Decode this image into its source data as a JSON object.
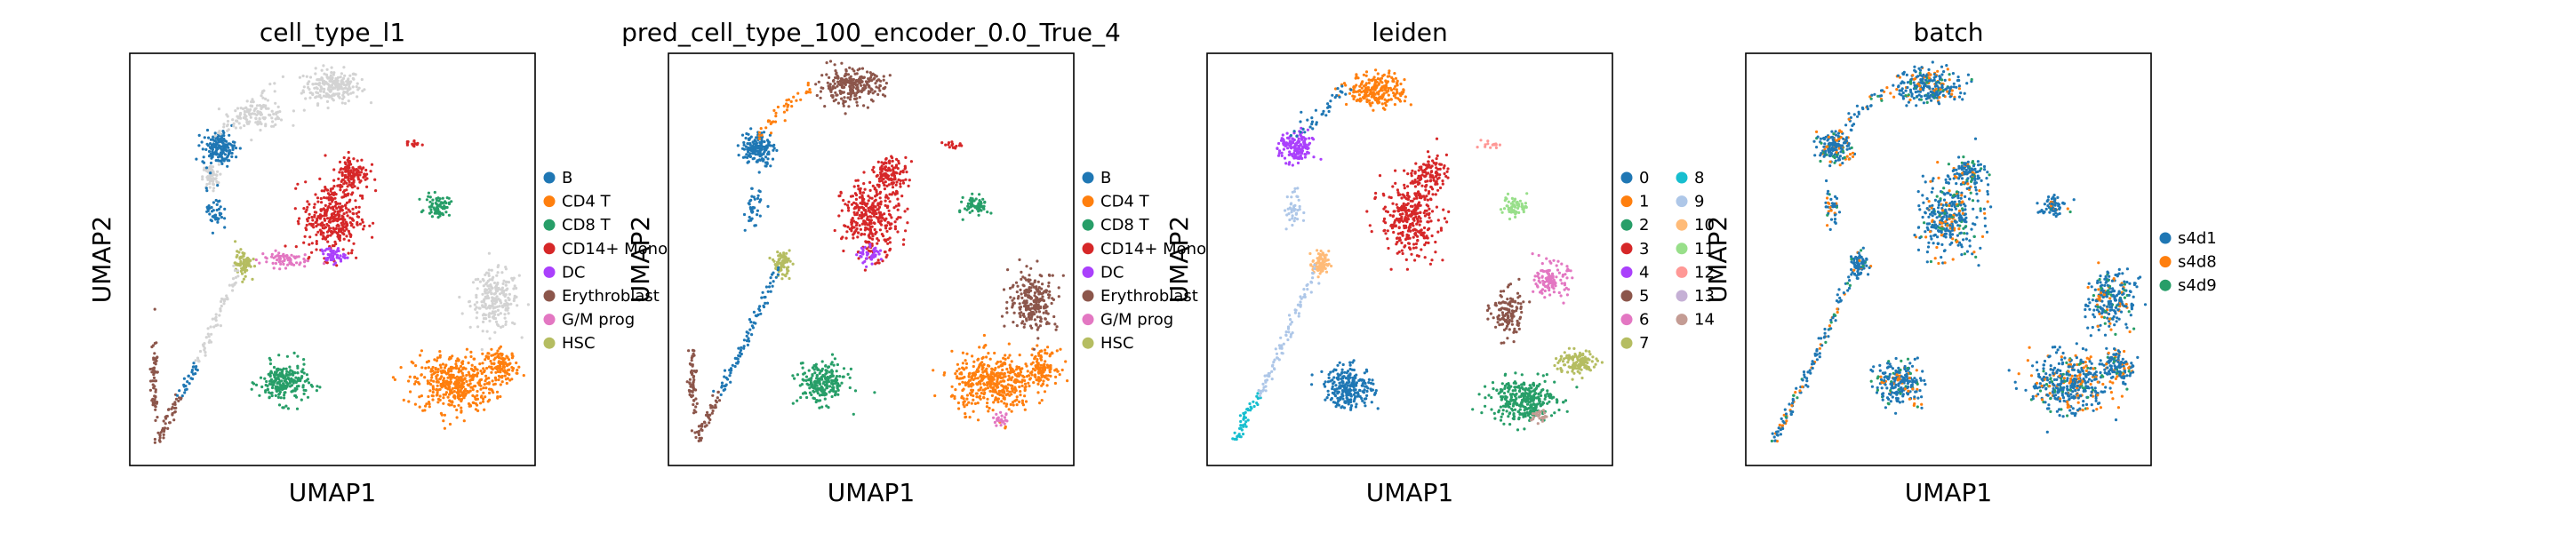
{
  "chart_data": [
    {
      "type": "scatter",
      "title": "cell_type_l1",
      "xlabel": "UMAP1",
      "ylabel": "UMAP2",
      "grid": false,
      "legend_placement": "right",
      "legend": [
        {
          "label": "B",
          "color": "#1f77b4"
        },
        {
          "label": "CD4 T",
          "color": "#ff7f0e"
        },
        {
          "label": "CD8 T",
          "color": "#279e68"
        },
        {
          "label": "CD14+ Mono",
          "color": "#d62728"
        },
        {
          "label": "DC",
          "color": "#aa40fc"
        },
        {
          "label": "Erythroblast",
          "color": "#8c564b"
        },
        {
          "label": "G/M prog",
          "color": "#e377c2"
        },
        {
          "label": "HSC",
          "color": "#b5bd61"
        }
      ],
      "clusters": [
        {
          "cat": "CD4 T",
          "cx": 0.8,
          "cy": 0.2,
          "rx": 0.1,
          "ry": 0.07,
          "n": 420
        },
        {
          "cat": "CD4 T",
          "cx": 0.92,
          "cy": 0.24,
          "rx": 0.04,
          "ry": 0.04,
          "n": 120
        },
        {
          "cat": "CD8 T",
          "cx": 0.38,
          "cy": 0.2,
          "rx": 0.06,
          "ry": 0.05,
          "n": 220
        },
        {
          "cat": "CD8 T",
          "cx": 0.76,
          "cy": 0.63,
          "rx": 0.03,
          "ry": 0.025,
          "n": 70
        },
        {
          "cat": "CD14+ Mono",
          "cx": 0.5,
          "cy": 0.6,
          "rx": 0.07,
          "ry": 0.09,
          "n": 340
        },
        {
          "cat": "CD14+ Mono",
          "cx": 0.55,
          "cy": 0.71,
          "rx": 0.04,
          "ry": 0.04,
          "n": 120
        },
        {
          "cat": "B",
          "cx": 0.22,
          "cy": 0.77,
          "rx": 0.04,
          "ry": 0.04,
          "n": 160
        },
        {
          "cat": "DC",
          "cx": 0.5,
          "cy": 0.51,
          "rx": 0.03,
          "ry": 0.02,
          "n": 50
        },
        {
          "cat": "HSC",
          "cx": 0.28,
          "cy": 0.49,
          "rx": 0.02,
          "ry": 0.03,
          "n": 80
        },
        {
          "cat": "G/M prog",
          "cx": 0.38,
          "cy": 0.5,
          "rx": 0.06,
          "ry": 0.02,
          "n": 70
        },
        {
          "cat": "Erythroblast",
          "cx": 0.06,
          "cy": 0.2,
          "rx": 0.01,
          "ry": 0.1,
          "n": 60
        },
        {
          "cat": "B",
          "cx": 0.21,
          "cy": 0.62,
          "rx": 0.02,
          "ry": 0.05,
          "n": 40
        },
        {
          "cat": "CD14+ Mono",
          "cx": 0.7,
          "cy": 0.78,
          "rx": 0.02,
          "ry": 0.01,
          "n": 15
        }
      ],
      "gray_clusters": [
        {
          "cx": 0.5,
          "cy": 0.92,
          "rx": 0.07,
          "ry": 0.04,
          "n": 220
        },
        {
          "cx": 0.9,
          "cy": 0.4,
          "rx": 0.06,
          "ry": 0.07,
          "n": 220
        },
        {
          "cx": 0.32,
          "cy": 0.85,
          "rx": 0.07,
          "ry": 0.03,
          "n": 110
        },
        {
          "cx": 0.2,
          "cy": 0.7,
          "rx": 0.02,
          "ry": 0.03,
          "n": 60
        }
      ],
      "trail": {
        "cat": "B",
        "alt": "Erythroblast",
        "gray": true
      }
    },
    {
      "type": "scatter",
      "title": "pred_cell_type_100_encoder_0.0_True_4",
      "xlabel": "UMAP1",
      "ylabel": "UMAP2",
      "grid": false,
      "legend_placement": "right",
      "legend": [
        {
          "label": "B",
          "color": "#1f77b4"
        },
        {
          "label": "CD4 T",
          "color": "#ff7f0e"
        },
        {
          "label": "CD8 T",
          "color": "#279e68"
        },
        {
          "label": "CD14+ Mono",
          "color": "#d62728"
        },
        {
          "label": "DC",
          "color": "#aa40fc"
        },
        {
          "label": "Erythroblast",
          "color": "#8c564b"
        },
        {
          "label": "G/M prog",
          "color": "#e377c2"
        },
        {
          "label": "HSC",
          "color": "#b5bd61"
        }
      ],
      "clusters": [
        {
          "cat": "CD4 T",
          "cx": 0.8,
          "cy": 0.2,
          "rx": 0.1,
          "ry": 0.07,
          "n": 420
        },
        {
          "cat": "CD4 T",
          "cx": 0.92,
          "cy": 0.24,
          "rx": 0.04,
          "ry": 0.04,
          "n": 120
        },
        {
          "cat": "CD8 T",
          "cx": 0.38,
          "cy": 0.2,
          "rx": 0.06,
          "ry": 0.05,
          "n": 220
        },
        {
          "cat": "CD8 T",
          "cx": 0.76,
          "cy": 0.63,
          "rx": 0.03,
          "ry": 0.025,
          "n": 70
        },
        {
          "cat": "CD14+ Mono",
          "cx": 0.5,
          "cy": 0.6,
          "rx": 0.07,
          "ry": 0.09,
          "n": 340
        },
        {
          "cat": "CD14+ Mono",
          "cx": 0.55,
          "cy": 0.71,
          "rx": 0.04,
          "ry": 0.04,
          "n": 120
        },
        {
          "cat": "B",
          "cx": 0.22,
          "cy": 0.77,
          "rx": 0.04,
          "ry": 0.04,
          "n": 160
        },
        {
          "cat": "Erythroblast",
          "cx": 0.45,
          "cy": 0.92,
          "rx": 0.08,
          "ry": 0.04,
          "n": 260
        },
        {
          "cat": "Erythroblast",
          "cx": 0.9,
          "cy": 0.4,
          "rx": 0.06,
          "ry": 0.07,
          "n": 240
        },
        {
          "cat": "Erythroblast",
          "cx": 0.06,
          "cy": 0.2,
          "rx": 0.01,
          "ry": 0.1,
          "n": 60
        },
        {
          "cat": "DC",
          "cx": 0.5,
          "cy": 0.51,
          "rx": 0.03,
          "ry": 0.02,
          "n": 40
        },
        {
          "cat": "HSC",
          "cx": 0.28,
          "cy": 0.49,
          "rx": 0.02,
          "ry": 0.03,
          "n": 80
        },
        {
          "cat": "G/M prog",
          "cx": 0.82,
          "cy": 0.11,
          "rx": 0.02,
          "ry": 0.015,
          "n": 25
        },
        {
          "cat": "B",
          "cx": 0.21,
          "cy": 0.62,
          "rx": 0.02,
          "ry": 0.05,
          "n": 40
        },
        {
          "cat": "CD14+ Mono",
          "cx": 0.7,
          "cy": 0.78,
          "rx": 0.02,
          "ry": 0.01,
          "n": 15
        }
      ],
      "gray_clusters": [],
      "trail": {
        "cat": "B",
        "alt": "Erythroblast",
        "gray": false
      }
    },
    {
      "type": "scatter",
      "title": "leiden",
      "xlabel": "UMAP1",
      "ylabel": "UMAP2",
      "grid": false,
      "legend_placement": "right",
      "legend": [
        {
          "label": "0",
          "color": "#1f77b4"
        },
        {
          "label": "1",
          "color": "#ff7f0e"
        },
        {
          "label": "2",
          "color": "#279e68"
        },
        {
          "label": "3",
          "color": "#d62728"
        },
        {
          "label": "4",
          "color": "#aa40fc"
        },
        {
          "label": "5",
          "color": "#8c564b"
        },
        {
          "label": "6",
          "color": "#e377c2"
        },
        {
          "label": "7",
          "color": "#b5bd61"
        },
        {
          "label": "8",
          "color": "#17becf"
        },
        {
          "label": "9",
          "color": "#aec7e8"
        },
        {
          "label": "10",
          "color": "#ffbb78"
        },
        {
          "label": "11",
          "color": "#98df8a"
        },
        {
          "label": "12",
          "color": "#ff9896"
        },
        {
          "label": "13",
          "color": "#c5b0d5"
        },
        {
          "label": "14",
          "color": "#c49c94"
        }
      ],
      "clusters": [
        {
          "cat": "0",
          "cx": 0.35,
          "cy": 0.19,
          "rx": 0.06,
          "ry": 0.05,
          "n": 240
        },
        {
          "cat": "2",
          "cx": 0.78,
          "cy": 0.16,
          "rx": 0.08,
          "ry": 0.05,
          "n": 320
        },
        {
          "cat": "7",
          "cx": 0.91,
          "cy": 0.25,
          "rx": 0.05,
          "ry": 0.03,
          "n": 120
        },
        {
          "cat": "6",
          "cx": 0.85,
          "cy": 0.45,
          "rx": 0.04,
          "ry": 0.04,
          "n": 120
        },
        {
          "cat": "5",
          "cx": 0.74,
          "cy": 0.37,
          "rx": 0.04,
          "ry": 0.06,
          "n": 130
        },
        {
          "cat": "3",
          "cx": 0.5,
          "cy": 0.6,
          "rx": 0.07,
          "ry": 0.09,
          "n": 320
        },
        {
          "cat": "3",
          "cx": 0.55,
          "cy": 0.71,
          "rx": 0.04,
          "ry": 0.04,
          "n": 100
        },
        {
          "cat": "11",
          "cx": 0.76,
          "cy": 0.63,
          "rx": 0.03,
          "ry": 0.025,
          "n": 60
        },
        {
          "cat": "1",
          "cx": 0.42,
          "cy": 0.91,
          "rx": 0.07,
          "ry": 0.04,
          "n": 240
        },
        {
          "cat": "4",
          "cx": 0.22,
          "cy": 0.77,
          "rx": 0.04,
          "ry": 0.04,
          "n": 160
        },
        {
          "cat": "9",
          "cx": 0.21,
          "cy": 0.62,
          "rx": 0.02,
          "ry": 0.05,
          "n": 40
        },
        {
          "cat": "10",
          "cx": 0.28,
          "cy": 0.49,
          "rx": 0.02,
          "ry": 0.03,
          "n": 80
        },
        {
          "cat": "12",
          "cx": 0.7,
          "cy": 0.78,
          "rx": 0.02,
          "ry": 0.01,
          "n": 15
        },
        {
          "cat": "14",
          "cx": 0.82,
          "cy": 0.12,
          "rx": 0.02,
          "ry": 0.015,
          "n": 25
        }
      ],
      "gray_clusters": [],
      "trail": {
        "cat": "9",
        "alt": "8",
        "gray": false
      }
    },
    {
      "type": "scatter",
      "title": "batch",
      "xlabel": "UMAP1",
      "ylabel": "UMAP2",
      "grid": false,
      "legend_placement": "right",
      "legend": [
        {
          "label": "s4d1",
          "color": "#1f77b4"
        },
        {
          "label": "s4d8",
          "color": "#ff7f0e"
        },
        {
          "label": "s4d9",
          "color": "#279e68"
        }
      ],
      "clusters": [
        {
          "cat": "mix",
          "cx": 0.8,
          "cy": 0.2,
          "rx": 0.1,
          "ry": 0.07,
          "n": 420
        },
        {
          "cat": "mix",
          "cx": 0.92,
          "cy": 0.24,
          "rx": 0.04,
          "ry": 0.04,
          "n": 120
        },
        {
          "cat": "mix",
          "cx": 0.38,
          "cy": 0.2,
          "rx": 0.06,
          "ry": 0.05,
          "n": 220
        },
        {
          "cat": "mix",
          "cx": 0.76,
          "cy": 0.63,
          "rx": 0.03,
          "ry": 0.025,
          "n": 70
        },
        {
          "cat": "mix",
          "cx": 0.5,
          "cy": 0.6,
          "rx": 0.07,
          "ry": 0.09,
          "n": 340
        },
        {
          "cat": "mix",
          "cx": 0.55,
          "cy": 0.71,
          "rx": 0.04,
          "ry": 0.04,
          "n": 120
        },
        {
          "cat": "mix",
          "cx": 0.22,
          "cy": 0.77,
          "rx": 0.04,
          "ry": 0.04,
          "n": 160
        },
        {
          "cat": "mix",
          "cx": 0.45,
          "cy": 0.92,
          "rx": 0.08,
          "ry": 0.04,
          "n": 260
        },
        {
          "cat": "mix",
          "cx": 0.9,
          "cy": 0.4,
          "rx": 0.06,
          "ry": 0.07,
          "n": 240
        },
        {
          "cat": "mix",
          "cx": 0.28,
          "cy": 0.49,
          "rx": 0.02,
          "ry": 0.03,
          "n": 80
        },
        {
          "cat": "mix",
          "cx": 0.21,
          "cy": 0.62,
          "rx": 0.02,
          "ry": 0.05,
          "n": 40
        }
      ],
      "gray_clusters": [],
      "trail": {
        "cat": "mix",
        "alt": "mix",
        "gray": false
      }
    }
  ]
}
